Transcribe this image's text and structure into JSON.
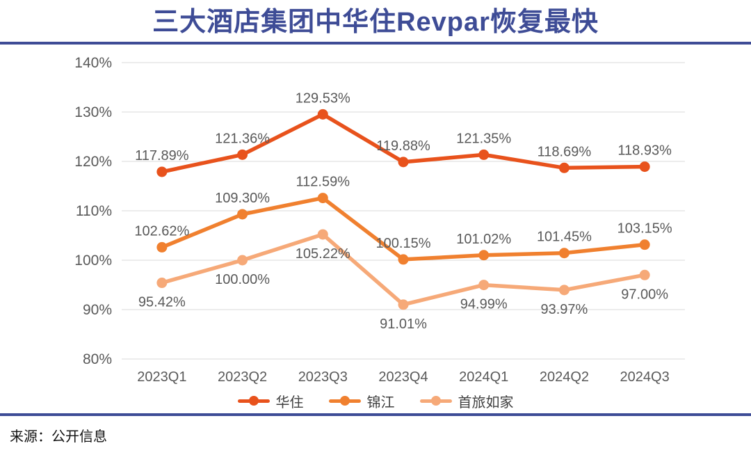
{
  "page": {
    "title": "三大酒店集团中华住Revpar恢复最快",
    "source": "来源：公开信息"
  },
  "colors": {
    "title": "#3E4C96",
    "divider": "#3E4C96",
    "gridline": "#D8D8D8",
    "axis_text": "#595959",
    "value_label_text": "#595959",
    "background": "#FFFFFF"
  },
  "chart_data": {
    "type": "line",
    "title": "三大酒店集团中华住Revpar恢复最快",
    "xlabel": "",
    "ylabel": "",
    "categories": [
      "2023Q1",
      "2023Q2",
      "2023Q3",
      "2023Q4",
      "2024Q1",
      "2024Q2",
      "2024Q3"
    ],
    "series": [
      {
        "id": "huazhu",
        "name": "华住",
        "color": "#E8521C",
        "values": [
          117.89,
          121.36,
          129.53,
          119.88,
          121.35,
          118.69,
          118.93
        ],
        "label_position": "above"
      },
      {
        "id": "jinjiang",
        "name": "锦江",
        "color": "#F0802F",
        "values": [
          102.62,
          109.3,
          112.59,
          100.15,
          101.02,
          101.45,
          103.15
        ],
        "label_position": "above"
      },
      {
        "id": "shoulv-rujia",
        "name": "首旅如家",
        "color": "#F6A978",
        "values": [
          95.42,
          100.0,
          105.22,
          91.01,
          94.99,
          93.97,
          97.0
        ],
        "label_position": "below"
      }
    ],
    "ylim": [
      80,
      140
    ],
    "ytick_step": 10,
    "ytick_suffix": "%",
    "value_decimals": 2,
    "grid": "horizontal",
    "legend_position": "bottom"
  }
}
